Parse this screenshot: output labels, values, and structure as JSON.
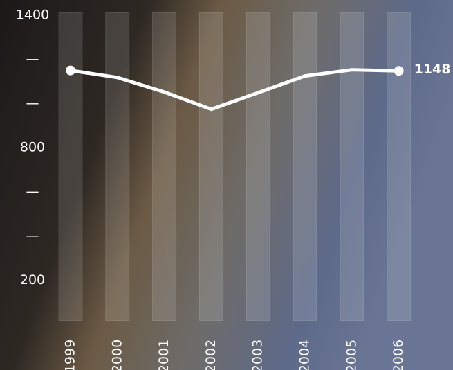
{
  "chart_data": {
    "type": "line",
    "categories": [
      "1999",
      "2000",
      "2001",
      "2002",
      "2003",
      "2004",
      "2005",
      "2006"
    ],
    "series": [
      {
        "color": "#ffffff",
        "values": [
          1150,
          1118,
          1052,
          974,
          1049,
          1125,
          1153,
          1148
        ]
      }
    ],
    "ylim": [
      0,
      1400
    ],
    "yticks": [
      200,
      {
        "value": 400,
        "label": "—"
      },
      {
        "value": 600,
        "label": "—"
      },
      800,
      {
        "value": 1000,
        "label": "—"
      },
      {
        "value": 1200,
        "label": "—"
      },
      1400
    ]
  }
}
